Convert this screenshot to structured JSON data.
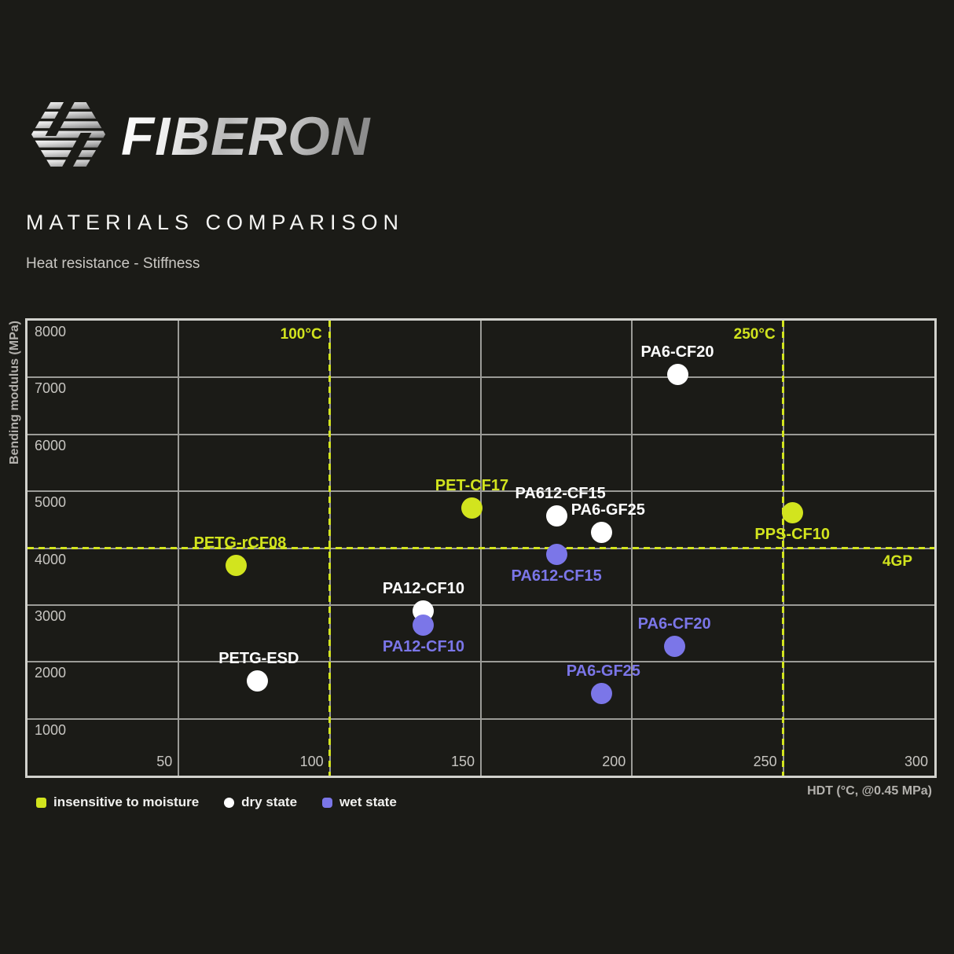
{
  "header": {
    "brand": "FIBERON",
    "title": "MATERIALS COMPARISON",
    "subtitle": "Heat resistance - Stiffness"
  },
  "colors": {
    "background": "#1b1b17",
    "insensitive": "#d2e41e",
    "dry": "#ffffff",
    "wet": "#7b76e8",
    "grid": "#9b9b97",
    "border": "#d2d2cd",
    "tick_text": "#c7c5c1",
    "axis_title_text": "#b3b1ad"
  },
  "chart_data": {
    "type": "scatter",
    "title": "Heat resistance - Stiffness",
    "xlabel": "HDT (°C, @0.45 MPa)",
    "ylabel": "Bending modulus (MPa)",
    "xlim": [
      0,
      300
    ],
    "ylim": [
      0,
      8000
    ],
    "x_ticks": [
      50,
      100,
      150,
      200,
      250,
      300
    ],
    "y_ticks": [
      1000,
      2000,
      3000,
      4000,
      5000,
      6000,
      7000,
      8000
    ],
    "grid": true,
    "reference_lines": {
      "vertical": [
        {
          "x": 100,
          "label": "100°C"
        },
        {
          "x": 250,
          "label": "250°C"
        }
      ],
      "horizontal": [
        {
          "y": 4000,
          "label": "4GP"
        }
      ]
    },
    "series_legend": {
      "insensitive": "insensitive to moisture",
      "dry": "dry state",
      "wet": "wet state"
    },
    "points": [
      {
        "name": "PETG-rCF08",
        "series": "insensitive",
        "x": 69,
        "y": 3700,
        "label_side": "above",
        "label_dx": 5
      },
      {
        "name": "PETG-ESD",
        "series": "dry",
        "x": 76,
        "y": 1670,
        "label_side": "above",
        "label_dx": 2
      },
      {
        "name": "PA12-CF10",
        "series": "dry",
        "x": 131,
        "y": 2900,
        "label_side": "above",
        "label_dx": 0
      },
      {
        "name": "PA12-CF10",
        "series": "wet",
        "x": 131,
        "y": 2640,
        "label_side": "below",
        "label_dx": 0
      },
      {
        "name": "PET-CF17",
        "series": "insensitive",
        "x": 147,
        "y": 4700,
        "label_side": "above",
        "label_dx": 0
      },
      {
        "name": "PA612-CF15",
        "series": "dry",
        "x": 175,
        "y": 4560,
        "label_side": "above",
        "label_dx": 5
      },
      {
        "name": "PA612-CF15",
        "series": "wet",
        "x": 175,
        "y": 3890,
        "label_side": "below",
        "label_dx": 0
      },
      {
        "name": "PA6-GF25",
        "series": "dry",
        "x": 190,
        "y": 4280,
        "label_side": "above",
        "label_dx": 8
      },
      {
        "name": "PA6-GF25",
        "series": "wet",
        "x": 190,
        "y": 1440,
        "label_side": "above",
        "label_dx": 2
      },
      {
        "name": "PA6-CF20",
        "series": "dry",
        "x": 215,
        "y": 7050,
        "label_side": "above",
        "label_dx": 0
      },
      {
        "name": "PA6-CF20",
        "series": "wet",
        "x": 214,
        "y": 2270,
        "label_side": "above",
        "label_dx": 0
      },
      {
        "name": "PPS-CF10",
        "series": "insensitive",
        "x": 253,
        "y": 4620,
        "label_side": "below",
        "label_dx": 0
      }
    ]
  },
  "legend": [
    {
      "series": "insensitive",
      "label": "insensitive to moisture"
    },
    {
      "series": "dry",
      "label": "dry state"
    },
    {
      "series": "wet",
      "label": "wet state"
    }
  ]
}
